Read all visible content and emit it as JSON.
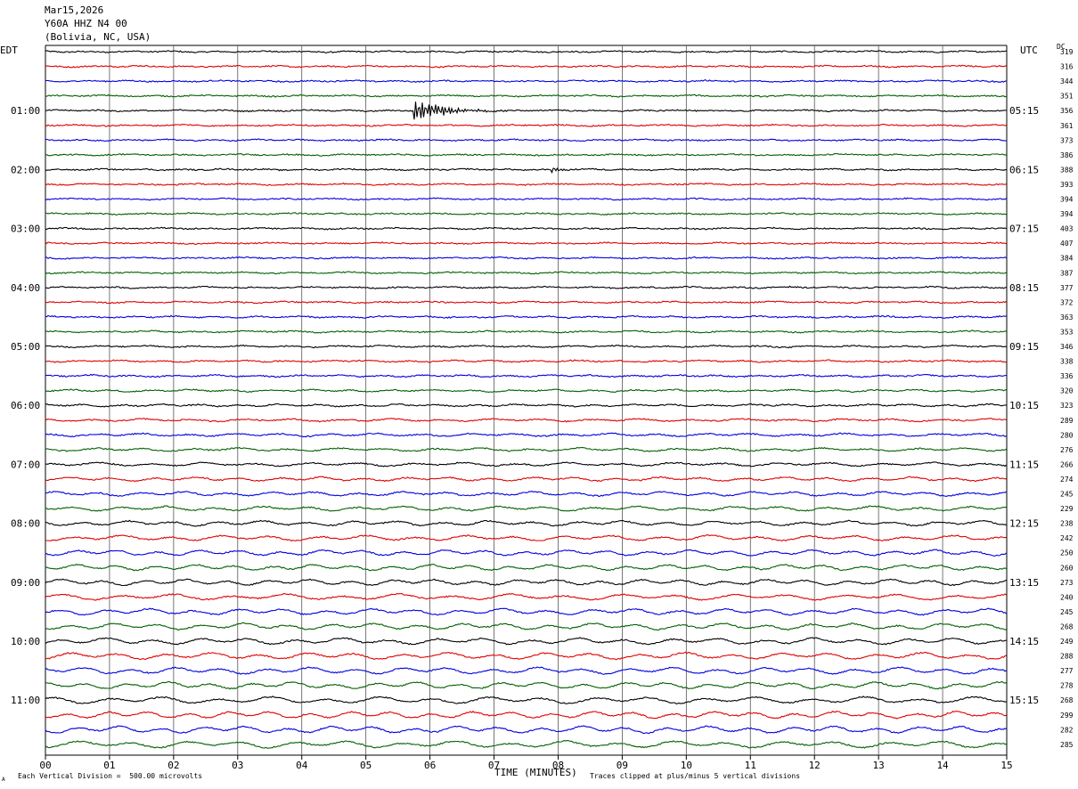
{
  "header": {
    "date": "Mar15,2026",
    "station": "Y60A HHZ N4 00",
    "location": "(Bolivia, NC, USA)"
  },
  "left_axis_title": "EDT",
  "right_axis_title": "UTC",
  "dc_title": "DC",
  "footer": {
    "scale_note": "Each Vertical Division =  500.00 microvolts",
    "clip_note": "Traces clipped at plus/minus 5 vertical divisions",
    "corner_mark": "A"
  },
  "colors": {
    "trace_cycle": [
      "#000000",
      "#e00000",
      "#0000e0",
      "#006000"
    ],
    "grid": "#000000"
  },
  "chart_data": {
    "type": "line",
    "title": "Mar15,2026 Y60A HHZ N4 00 (Bolivia, NC, USA)",
    "xlabel": "TIME (MINUTES)",
    "ylabel": "",
    "xlim": [
      0,
      15
    ],
    "x_ticks": [
      "00",
      "01",
      "02",
      "03",
      "04",
      "05",
      "06",
      "07",
      "08",
      "09",
      "10",
      "11",
      "12",
      "13",
      "14",
      "15"
    ],
    "left_time_labels": [
      {
        "row": 4,
        "label": "01:00"
      },
      {
        "row": 8,
        "label": "02:00"
      },
      {
        "row": 12,
        "label": "03:00"
      },
      {
        "row": 16,
        "label": "04:00"
      },
      {
        "row": 20,
        "label": "05:00"
      },
      {
        "row": 24,
        "label": "06:00"
      },
      {
        "row": 28,
        "label": "07:00"
      },
      {
        "row": 32,
        "label": "08:00"
      },
      {
        "row": 36,
        "label": "09:00"
      },
      {
        "row": 40,
        "label": "10:00"
      },
      {
        "row": 44,
        "label": "11:00"
      }
    ],
    "right_time_labels": [
      {
        "row": 4,
        "label": "05:15"
      },
      {
        "row": 8,
        "label": "06:15"
      },
      {
        "row": 12,
        "label": "07:15"
      },
      {
        "row": 16,
        "label": "08:15"
      },
      {
        "row": 20,
        "label": "09:15"
      },
      {
        "row": 24,
        "label": "10:15"
      },
      {
        "row": 28,
        "label": "11:15"
      },
      {
        "row": 32,
        "label": "12:15"
      },
      {
        "row": 36,
        "label": "13:15"
      },
      {
        "row": 40,
        "label": "14:15"
      },
      {
        "row": 44,
        "label": "15:15"
      }
    ],
    "dc_offsets": [
      319,
      316,
      344,
      351,
      356,
      361,
      373,
      386,
      388,
      393,
      394,
      394,
      403,
      407,
      384,
      387,
      377,
      372,
      363,
      353,
      346,
      338,
      336,
      320,
      323,
      289,
      280,
      276,
      266,
      274,
      245,
      229,
      238,
      242,
      250,
      260,
      273,
      240,
      245,
      268,
      249,
      288,
      277,
      278,
      268,
      299,
      282,
      285
    ],
    "row_amplitude": [
      0.8,
      0.8,
      0.8,
      0.8,
      0.8,
      0.8,
      0.8,
      0.8,
      0.8,
      0.8,
      0.8,
      0.8,
      0.8,
      0.8,
      0.8,
      0.8,
      0.9,
      0.9,
      1.0,
      1.0,
      1.1,
      1.1,
      1.2,
      1.3,
      1.4,
      1.6,
      1.8,
      2.0,
      2.2,
      2.4,
      2.6,
      2.8,
      3.0,
      3.2,
      3.3,
      3.4,
      3.5,
      3.6,
      3.7,
      3.8,
      3.9,
      4.0,
      4.0,
      4.0,
      4.1,
      4.1,
      4.2,
      4.2
    ],
    "events": [
      {
        "row": 4,
        "minute": 5.75,
        "peak": 18,
        "duration_min": 1.5,
        "note": "small event"
      },
      {
        "row": 8,
        "minute": 7.9,
        "peak": 10,
        "duration_min": 0.2,
        "note": "spike burst"
      }
    ],
    "grid": true
  }
}
